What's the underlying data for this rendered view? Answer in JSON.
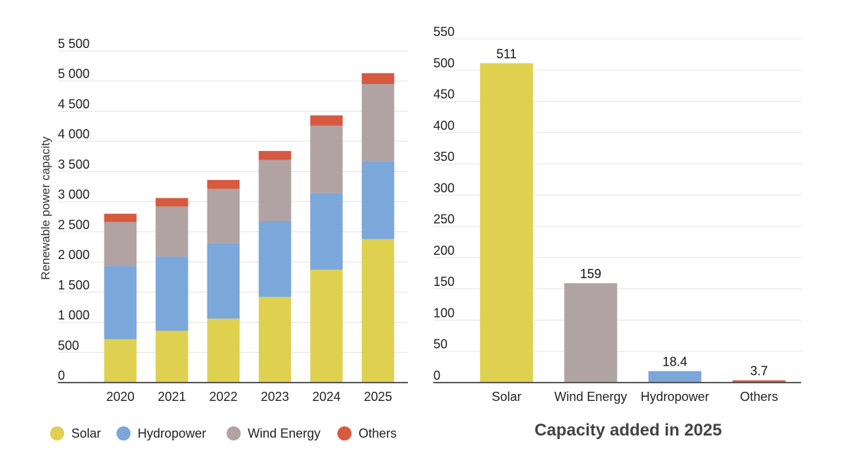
{
  "colors": {
    "solar": "#e0d050",
    "hydropower": "#7ba7da",
    "wind": "#b1a3a3",
    "others": "#d65a40"
  },
  "chart_data": [
    {
      "type": "bar",
      "stacked": true,
      "ylabel": "Renewable power capacity",
      "ylim": [
        0,
        5500
      ],
      "yticks": [
        0,
        500,
        1000,
        1500,
        2000,
        2500,
        3000,
        3500,
        4000,
        4500,
        5000,
        5500
      ],
      "ytick_labels": [
        "0",
        "500",
        "1 000",
        "1 500",
        "2 000",
        "2 500",
        "3 000",
        "3 500",
        "4 000",
        "4 500",
        "5 000",
        "5 500"
      ],
      "categories": [
        "2020",
        "2021",
        "2022",
        "2023",
        "2024",
        "2025"
      ],
      "series": [
        {
          "name": "Solar",
          "color": "#e0d050",
          "values": [
            720,
            860,
            1060,
            1420,
            1870,
            2380
          ]
        },
        {
          "name": "Hydropower",
          "color": "#7ba7da",
          "values": [
            1210,
            1230,
            1250,
            1260,
            1270,
            1290
          ]
        },
        {
          "name": "Wind Energy",
          "color": "#b1a3a3",
          "values": [
            730,
            830,
            900,
            1010,
            1120,
            1280
          ]
        },
        {
          "name": "Others",
          "color": "#d65a40",
          "values": [
            140,
            140,
            150,
            150,
            170,
            180
          ]
        }
      ],
      "legend": "bottom",
      "grid": true
    },
    {
      "type": "bar",
      "title": "Capacity added in 2025",
      "ylim": [
        0,
        550
      ],
      "yticks": [
        0,
        50,
        100,
        150,
        200,
        250,
        300,
        350,
        400,
        450,
        500,
        550
      ],
      "ytick_labels": [
        "0",
        "50",
        "100",
        "150",
        "200",
        "250",
        "300",
        "350",
        "400",
        "450",
        "500",
        "550"
      ],
      "categories": [
        "Solar",
        "Wind Energy",
        "Hydropower",
        "Others"
      ],
      "values": [
        511,
        159,
        18.4,
        3.7
      ],
      "value_labels": [
        "511",
        "159",
        "18.4",
        "3.7"
      ],
      "colors": [
        "#e0d050",
        "#b1a3a3",
        "#7ba7da",
        "#d65a40"
      ],
      "grid": true
    }
  ]
}
